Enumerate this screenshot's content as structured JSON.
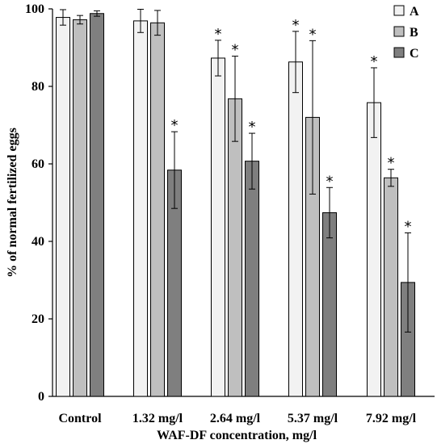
{
  "chart_data": {
    "type": "bar",
    "categories": [
      "Control",
      "1.32 mg/l",
      "2.64 mg/l",
      "5.37 mg/l",
      "7.92 mg/l"
    ],
    "series": [
      {
        "name": "A",
        "color": "#f2f2f2",
        "values": [
          97.8,
          96.9,
          87.3,
          86.3,
          75.8
        ],
        "errors": [
          2.0,
          3.0,
          4.6,
          7.9,
          9.0
        ],
        "significant": [
          false,
          false,
          true,
          true,
          true
        ]
      },
      {
        "name": "B",
        "color": "#bfbfbf",
        "values": [
          97.2,
          96.4,
          76.8,
          72.0,
          56.4
        ],
        "errors": [
          1.1,
          3.2,
          11.0,
          19.8,
          2.2
        ],
        "significant": [
          false,
          false,
          true,
          true,
          true
        ]
      },
      {
        "name": "C",
        "color": "#7f7f7f",
        "values": [
          98.8,
          58.4,
          60.7,
          47.4,
          29.4
        ],
        "errors": [
          0.7,
          9.9,
          7.2,
          6.5,
          12.8
        ],
        "significant": [
          false,
          true,
          true,
          true,
          true
        ]
      }
    ],
    "ylim": [
      0,
      100
    ],
    "yticks": [
      0,
      20,
      40,
      60,
      80,
      100
    ],
    "ylabel": "% of normal fertilized eggs",
    "xlabel": "WAF-DF  concentration,  mg/l",
    "significance_marker": "*",
    "legend": {
      "position": "top-right"
    },
    "grid": false
  }
}
